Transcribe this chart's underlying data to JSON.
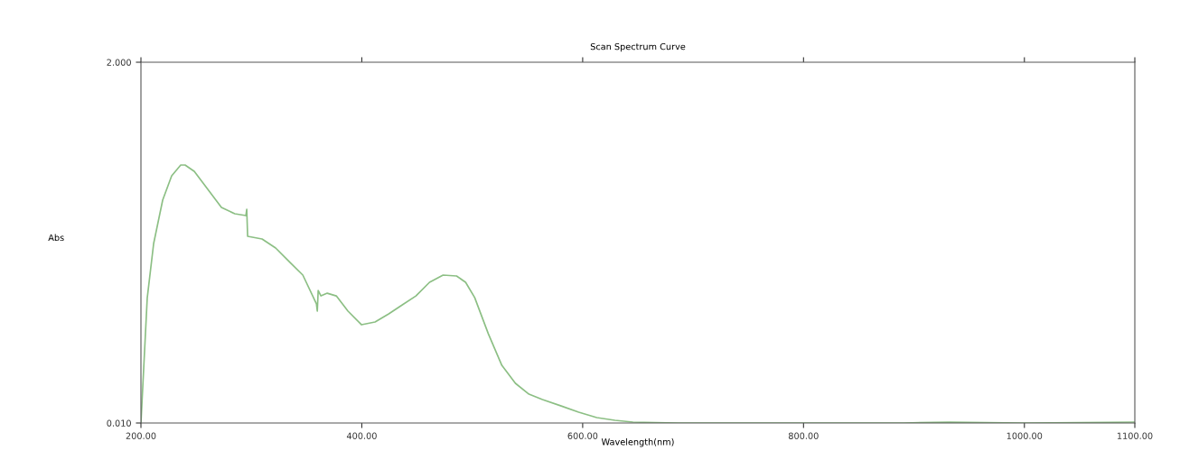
{
  "chart_data": {
    "type": "line",
    "title": "Scan Spectrum Curve",
    "xlabel": "Wavelength(nm)",
    "ylabel": "Abs",
    "x": [
      200,
      205.7,
      211.5,
      219.7,
      227.8,
      236,
      240,
      248.3,
      260.6,
      272.9,
      285,
      295,
      295.8,
      296.6,
      309.7,
      322,
      334.3,
      346.6,
      358.9,
      359.7,
      360.5,
      363,
      368.7,
      376.9,
      387.5,
      399.8,
      412,
      424.4,
      436.7,
      449,
      461.3,
      473.6,
      485.8,
      494,
      502.2,
      514.5,
      526.8,
      539.1,
      551.4,
      563.6,
      580,
      596.4,
      612.8,
      629.2,
      645.5,
      686.5,
      800,
      891,
      932,
      1000,
      1100
    ],
    "series": [
      {
        "color": "#8cbf84",
        "values": [
          0.01,
          0.7,
          1.0,
          1.24,
          1.373,
          1.433,
          1.433,
          1.398,
          1.298,
          1.199,
          1.164,
          1.154,
          1.189,
          1.04,
          1.025,
          0.975,
          0.9,
          0.826,
          0.667,
          0.627,
          0.741,
          0.711,
          0.726,
          0.711,
          0.627,
          0.552,
          0.567,
          0.612,
          0.662,
          0.711,
          0.786,
          0.826,
          0.821,
          0.786,
          0.702,
          0.503,
          0.328,
          0.229,
          0.169,
          0.139,
          0.105,
          0.07,
          0.04,
          0.025,
          0.015,
          0.01,
          0.01,
          0.01,
          0.015,
          0.01,
          0.015
        ]
      }
    ],
    "xlim": [
      200,
      1100
    ],
    "ylim": [
      0.01,
      2.0
    ],
    "xticks": [
      {
        "value": 200,
        "label": "200.00"
      },
      {
        "value": 400,
        "label": "400.00"
      },
      {
        "value": 600,
        "label": "600.00"
      },
      {
        "value": 800,
        "label": "800.00"
      },
      {
        "value": 1000,
        "label": "1000.00"
      },
      {
        "value": 1100,
        "label": "1100.00"
      }
    ],
    "yticks": [
      {
        "value": 0.01,
        "label": "0.010"
      },
      {
        "value": 2.0,
        "label": "2.000"
      }
    ],
    "grid": false,
    "legend": false,
    "marker": "none",
    "line_style": "solid"
  }
}
